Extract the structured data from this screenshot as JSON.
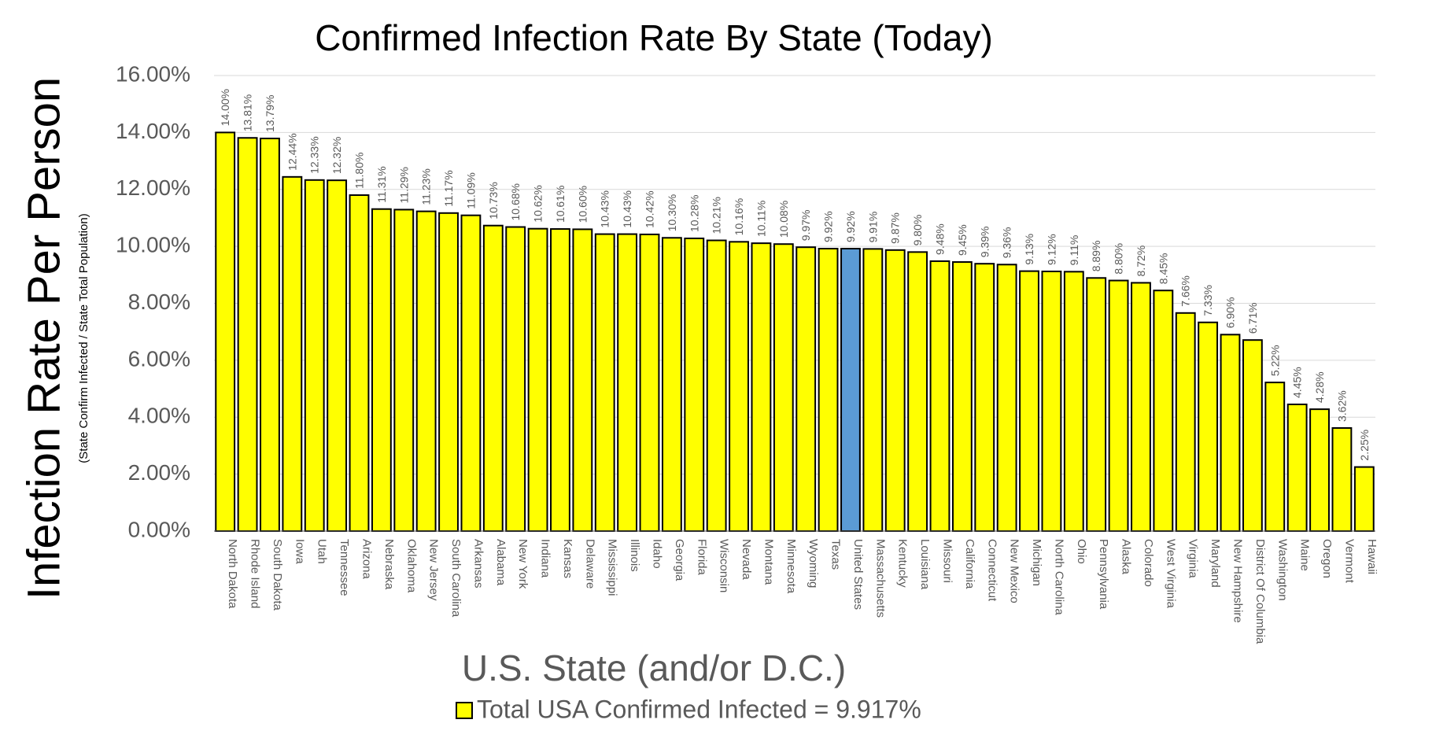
{
  "chart_data": {
    "type": "bar",
    "title": "Confirmed Infection Rate By State (Today)",
    "y_label": "Infection Rate Per Person",
    "y_sublabel": "(State Confirm Infected / State Total Population)",
    "x_label": "U.S. State (and/or D.C.)",
    "legend": "Total USA Confirmed Infected = 9.917%",
    "color": "#ffff00",
    "categories": [
      "North Dakota",
      "Rhode Island",
      "South Dakota",
      "Iowa",
      "Utah",
      "Tennessee",
      "Arizona",
      "Nebraska",
      "Oklahoma",
      "New Jersey",
      "South Carolina",
      "Arkansas",
      "Alabama",
      "New York",
      "Indiana",
      "Kansas",
      "Delaware",
      "Mississippi",
      "Illinois",
      "Idaho",
      "Georgia",
      "Florida",
      "Wisconsin",
      "Nevada",
      "Montana",
      "Minnesota",
      "Wyoming",
      "Texas",
      "United States",
      "Massachusetts",
      "Kentucky",
      "Louisiana",
      "Missouri",
      "California",
      "Connecticut",
      "New Mexico",
      "Michigan",
      "North Carolina",
      "Ohio",
      "Pennsylvania",
      "Alaska",
      "Colorado",
      "West Virginia",
      "Virginia",
      "Maryland",
      "New Hampshire",
      "District Of Columbia",
      "Washington",
      "Maine",
      "Oregon",
      "Vermont",
      "Hawaii"
    ],
    "values": [
      14.0,
      13.81,
      13.79,
      12.44,
      12.33,
      12.32,
      11.8,
      11.31,
      11.29,
      11.23,
      11.17,
      11.09,
      10.73,
      10.68,
      10.62,
      10.61,
      10.6,
      10.43,
      10.43,
      10.42,
      10.3,
      10.28,
      10.21,
      10.16,
      10.11,
      10.08,
      9.97,
      9.92,
      9.92,
      9.91,
      9.87,
      9.8,
      9.48,
      9.45,
      9.39,
      9.36,
      9.13,
      9.12,
      9.11,
      8.89,
      8.8,
      8.72,
      8.45,
      7.66,
      7.33,
      6.9,
      6.71,
      5.22,
      4.45,
      4.28,
      3.62,
      2.25
    ],
    "value_labels": [
      "14.00%",
      "13.81%",
      "13.79%",
      "12.44%",
      "12.33%",
      "12.32%",
      "11.80%",
      "11.31%",
      "11.29%",
      "11.23%",
      "11.17%",
      "11.09%",
      "10.73%",
      "10.68%",
      "10.62%",
      "10.61%",
      "10.60%",
      "10.43%",
      "10.43%",
      "10.42%",
      "10.30%",
      "10.28%",
      "10.21%",
      "10.16%",
      "10.11%",
      "10.08%",
      "9.97%",
      "9.92%",
      "9.92%",
      "9.91%",
      "9.87%",
      "9.80%",
      "9.48%",
      "9.45%",
      "9.39%",
      "9.36%",
      "9.13%",
      "9.12%",
      "9.11%",
      "8.89%",
      "8.80%",
      "8.72%",
      "8.45%",
      "7.66%",
      "7.33%",
      "6.90%",
      "6.71%",
      "5.22%",
      "4.45%",
      "4.28%",
      "3.62%",
      "2.25%"
    ],
    "colors": [
      "#ffff00",
      "#ffff00",
      "#ffff00",
      "#ffff00",
      "#ffff00",
      "#ffff00",
      "#ffff00",
      "#ffff00",
      "#ffff00",
      "#ffff00",
      "#ffff00",
      "#ffff00",
      "#ffff00",
      "#ffff00",
      "#ffff00",
      "#ffff00",
      "#ffff00",
      "#ffff00",
      "#ffff00",
      "#ffff00",
      "#ffff00",
      "#ffff00",
      "#ffff00",
      "#ffff00",
      "#ffff00",
      "#ffff00",
      "#ffff00",
      "#ffff00",
      "#5b9bd5",
      "#ffff00",
      "#ffff00",
      "#ffff00",
      "#ffff00",
      "#ffff00",
      "#ffff00",
      "#ffff00",
      "#ffff00",
      "#ffff00",
      "#ffff00",
      "#ffff00",
      "#ffff00",
      "#ffff00",
      "#ffff00",
      "#ffff00",
      "#ffff00",
      "#ffff00",
      "#ffff00",
      "#ffff00",
      "#ffff00",
      "#ffff00",
      "#ffff00",
      "#ffff00"
    ],
    "ylim": [
      0,
      16
    ],
    "yticks": [
      {
        "value": 0,
        "label": "0.00%"
      },
      {
        "value": 2,
        "label": "2.00%"
      },
      {
        "value": 4,
        "label": "4.00%"
      },
      {
        "value": 6,
        "label": "6.00%"
      },
      {
        "value": 8,
        "label": "8.00%"
      },
      {
        "value": 10,
        "label": "10.00%"
      },
      {
        "value": 12,
        "label": "12.00%"
      },
      {
        "value": 14,
        "label": "14.00%"
      },
      {
        "value": 16,
        "label": "16.00%"
      }
    ],
    "grid": true
  }
}
